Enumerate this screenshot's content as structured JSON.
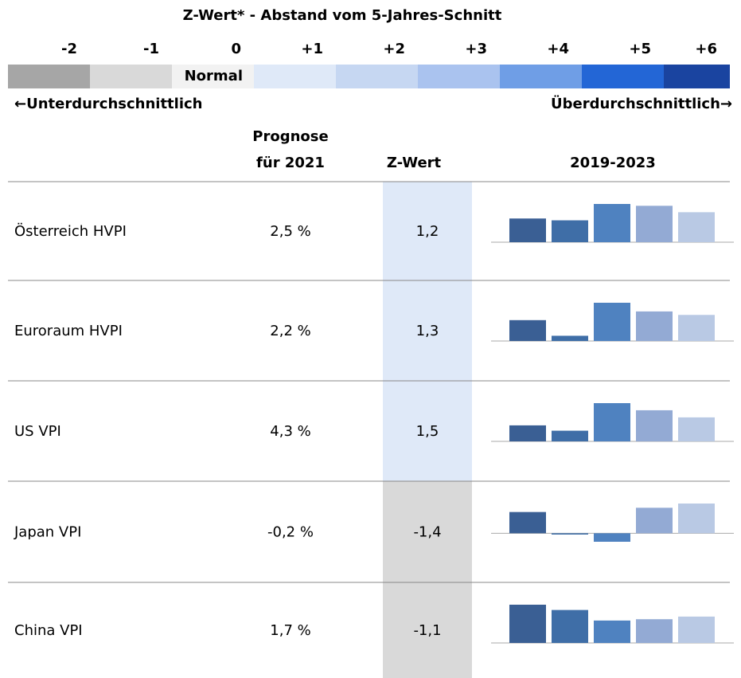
{
  "header": {
    "title": "Z-Wert* - Abstand vom 5-Jahres-Schnitt",
    "scale": [
      {
        "label": "-2",
        "color": "#a6a6a6"
      },
      {
        "label": "-1",
        "color": "#d9d9d9"
      },
      {
        "label": "0",
        "color": "#f2f2f2",
        "note": "Normal"
      },
      {
        "label": "+1",
        "color": "#dfe9f8"
      },
      {
        "label": "+2",
        "color": "#c6d7f2"
      },
      {
        "label": "+3",
        "color": "#aac3ef"
      },
      {
        "label": "+4",
        "color": "#6f9ee6"
      },
      {
        "label": "+5",
        "color": "#2366d6"
      },
      {
        "label": "+6",
        "color": "#1a44a0"
      }
    ],
    "left_hint": "←Unterdurchschnittlich",
    "right_hint": "Überdurchschnittlich→"
  },
  "table": {
    "columns": [
      "Prognose\nfür 2021",
      "Z-Wert",
      "2019-2023"
    ],
    "spark_colors": [
      "#3a5f94",
      "#3f6ea7",
      "#4f82c0",
      "#93aad4",
      "#b9c9e4"
    ],
    "rows": [
      {
        "name": "Österreich HVPI",
        "forecast": "2,5 %",
        "z": "1,2",
        "z_value": 1.2,
        "spark": [
          1.55,
          1.43,
          2.5,
          2.38,
          1.96
        ]
      },
      {
        "name": "Euroraum HVPI",
        "forecast": "2,2 %",
        "z": "1,3",
        "z_value": 1.3,
        "spark": [
          1.2,
          0.3,
          2.2,
          1.7,
          1.5
        ]
      },
      {
        "name": "US VPI",
        "forecast": "4,3 %",
        "z": "1,5",
        "z_value": 1.5,
        "spark": [
          1.8,
          1.2,
          4.3,
          3.5,
          2.7
        ]
      },
      {
        "name": "Japan VPI",
        "forecast": "-0,2 %",
        "z": "-1,4",
        "z_value": -1.4,
        "spark": [
          0.5,
          -0.03,
          -0.2,
          0.6,
          0.7
        ]
      },
      {
        "name": "China VPI",
        "forecast": "1,7 %",
        "z": "-1,1",
        "z_value": -1.1,
        "spark": [
          2.9,
          2.5,
          1.7,
          1.8,
          2.0
        ]
      }
    ]
  }
}
